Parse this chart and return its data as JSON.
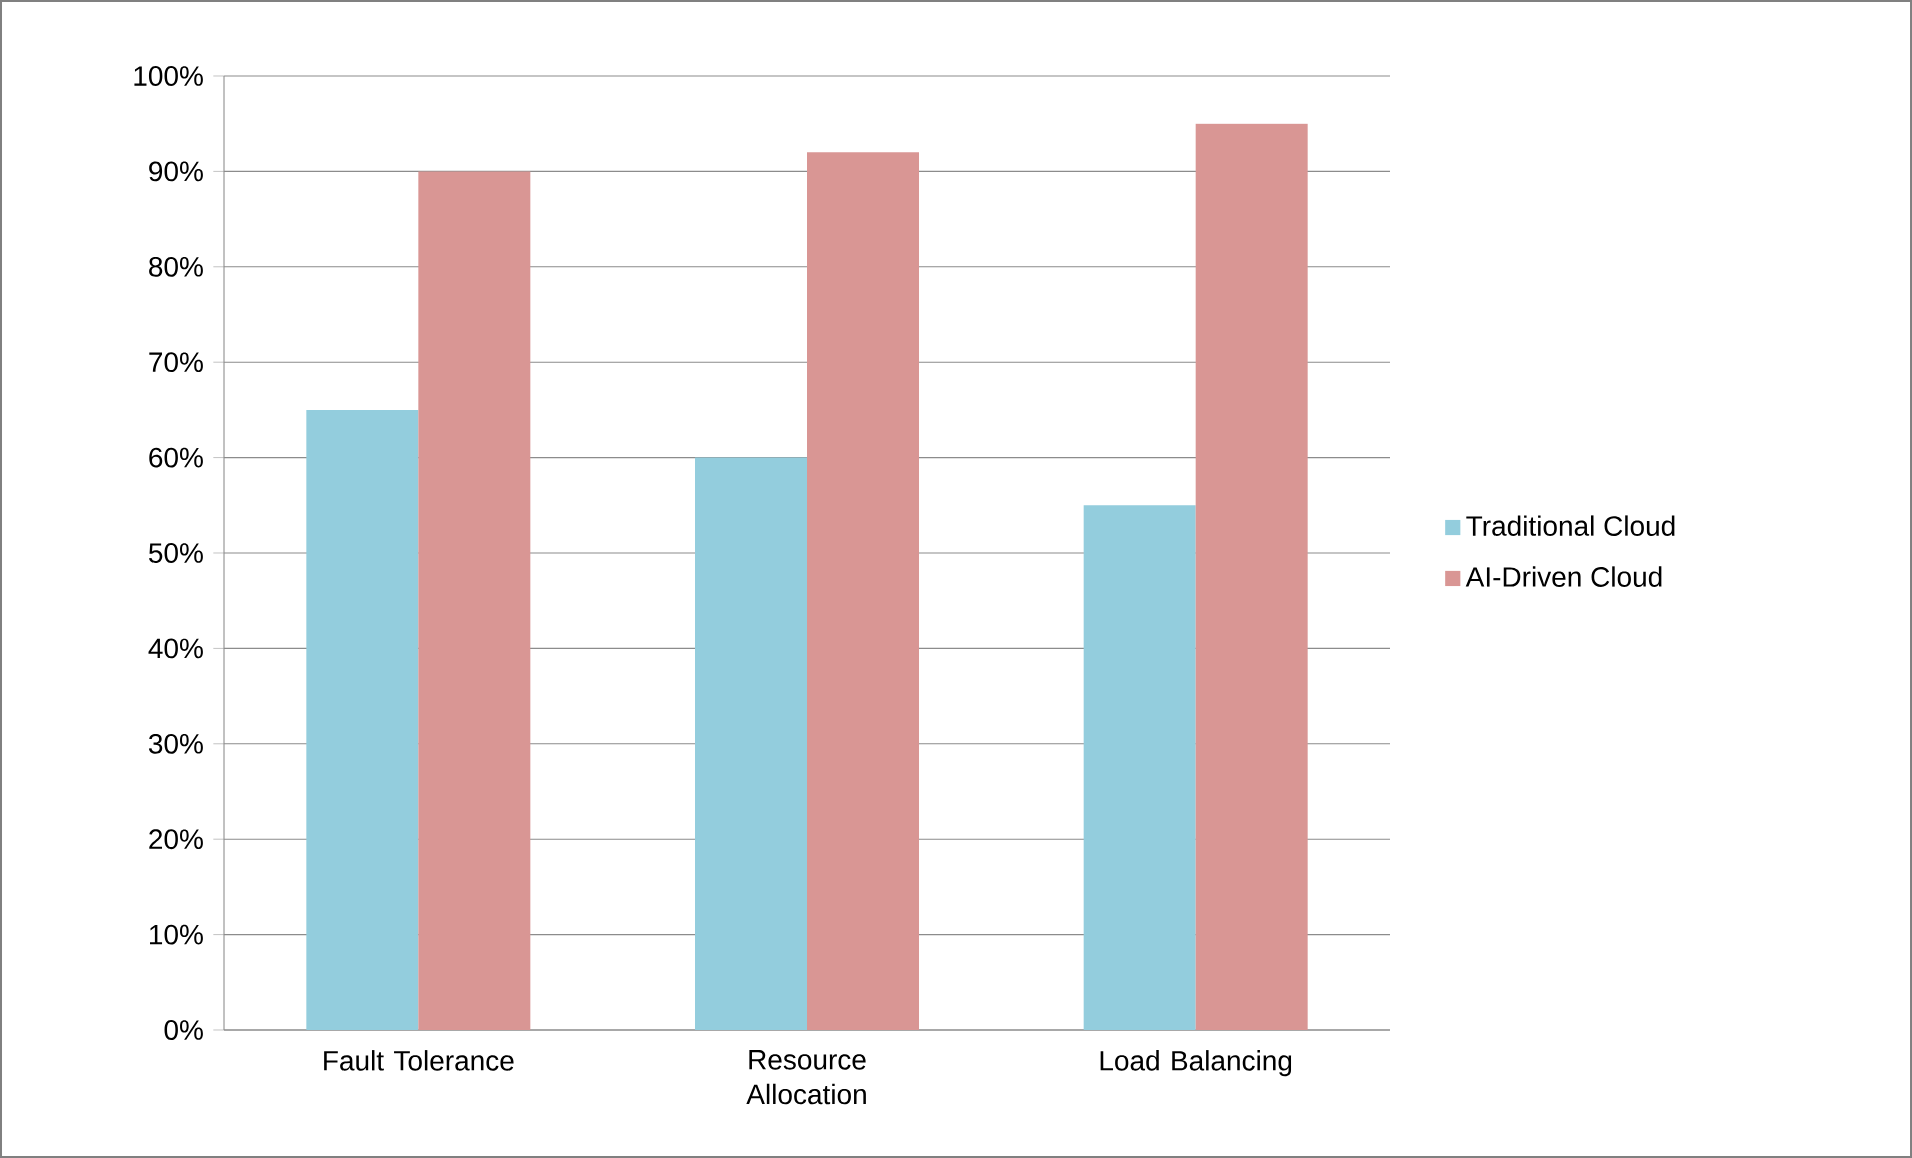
{
  "chart_data": {
    "type": "bar",
    "categories": [
      "Fault Tolerance",
      "Resource Allocation",
      "Load Balancing"
    ],
    "series": [
      {
        "name": "Traditional Cloud",
        "color": "#93cddd",
        "values": [
          65,
          60,
          55
        ]
      },
      {
        "name": "AI-Driven Cloud",
        "color": "#d99694",
        "values": [
          90,
          92,
          95
        ]
      }
    ],
    "ylim": [
      0,
      100
    ],
    "yticks": [
      {
        "value": 0,
        "label": "0%"
      },
      {
        "value": 10,
        "label": "10%"
      },
      {
        "value": 20,
        "label": "20%"
      },
      {
        "value": 30,
        "label": "30%"
      },
      {
        "value": 40,
        "label": "40%"
      },
      {
        "value": 50,
        "label": "50%"
      },
      {
        "value": 60,
        "label": "60%"
      },
      {
        "value": 70,
        "label": "70%"
      },
      {
        "value": 80,
        "label": "80%"
      },
      {
        "value": 90,
        "label": "90%"
      },
      {
        "value": 100,
        "label": "100%"
      }
    ],
    "grid": "y",
    "legend": "right"
  }
}
